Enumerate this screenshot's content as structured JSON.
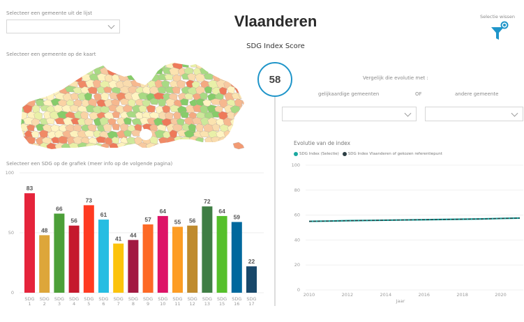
{
  "header": {
    "title": "Vlaanderen",
    "subtitle": "SDG Index Score",
    "clear_selection_label": "Selectie wissen",
    "kpi_value": "58"
  },
  "left": {
    "municipality_list_label": "Selecteer een gemeente uit de lijst",
    "municipality_list_value": "",
    "map_label": "Selecteer een gemeente op de kaart",
    "sdg_chart_label": "Selecteer een SDG op de grafiek (meer info op de volgende pagina)"
  },
  "right": {
    "compare_label": "Vergelijk die evolutie met :",
    "option_similar": "gelijkaardige gemeenten",
    "option_or": "OF",
    "option_other": "andere gemeente",
    "similar_dropdown_value": "",
    "other_dropdown_value": ""
  },
  "colors": {
    "accent": "#1f95c9",
    "series_selection": "#1aa8a0",
    "series_reference": "#2c3e44"
  },
  "chart_data": [
    {
      "type": "bar",
      "title": "Selecteer een SDG op de grafiek (meer info op de volgende pagina)",
      "categories": [
        "SDG 1",
        "SDG 2",
        "SDG 3",
        "SDG 4",
        "SDG 5",
        "SDG 6",
        "SDG 7",
        "SDG 8",
        "SDG 9",
        "SDG 10",
        "SDG 11",
        "SDG 12",
        "SDG 13",
        "SDG 15",
        "SDG 16",
        "SDG 17"
      ],
      "category_lines": [
        [
          "SDG",
          "1"
        ],
        [
          "SDG",
          "2"
        ],
        [
          "SDG",
          "3"
        ],
        [
          "SDG",
          "4"
        ],
        [
          "SDG",
          "5"
        ],
        [
          "SDG",
          "6"
        ],
        [
          "SDG",
          "7"
        ],
        [
          "SDG",
          "8"
        ],
        [
          "SDG",
          "9"
        ],
        [
          "SDG",
          "10"
        ],
        [
          "SDG",
          "11"
        ],
        [
          "SDG",
          "12"
        ],
        [
          "SDG",
          "13"
        ],
        [
          "SDG",
          "15"
        ],
        [
          "SDG",
          "16"
        ],
        [
          "SDG",
          "17"
        ]
      ],
      "values": [
        83,
        48,
        66,
        56,
        73,
        61,
        41,
        44,
        57,
        64,
        55,
        56,
        72,
        64,
        59,
        22
      ],
      "bar_colors": [
        "#e5243b",
        "#dda63a",
        "#4c9f38",
        "#c5192d",
        "#ff3a21",
        "#26bde2",
        "#fcc30b",
        "#a21942",
        "#fd6925",
        "#dd1367",
        "#fd9d24",
        "#bf8b2e",
        "#3f7e44",
        "#56c02b",
        "#00689d",
        "#19486a"
      ],
      "yticks": [
        0,
        50,
        100
      ],
      "ylim": [
        0,
        100
      ],
      "xlabel": "",
      "ylabel": "",
      "grid": true
    },
    {
      "type": "line",
      "title": "Evolutie van de index",
      "xlabel": "Jaar",
      "ylabel": "",
      "x": [
        2010,
        2011,
        2012,
        2013,
        2014,
        2015,
        2016,
        2017,
        2018,
        2019,
        2020,
        2021
      ],
      "series": [
        {
          "name": "SDG Index (Selectie)",
          "color": "#1aa8a0",
          "values": [
            55,
            55.2,
            55.5,
            55.7,
            55.9,
            56.1,
            56.3,
            56.5,
            56.7,
            56.9,
            57.3,
            57.6
          ]
        },
        {
          "name": "SDG Index Vlaanderen of gekozen referentiepunt",
          "color": "#2c3e44",
          "values": [
            55,
            55.2,
            55.5,
            55.7,
            55.9,
            56.1,
            56.3,
            56.5,
            56.7,
            56.9,
            57.3,
            57.6
          ]
        }
      ],
      "xticks": [
        "2010",
        "2012",
        "2014",
        "2016",
        "2018",
        "2020"
      ],
      "yticks": [
        "0",
        "20",
        "40",
        "60",
        "80",
        "100"
      ],
      "ylim": [
        0,
        100
      ],
      "xlim": [
        2010,
        2021
      ],
      "legend": "top-left",
      "grid": true
    }
  ]
}
